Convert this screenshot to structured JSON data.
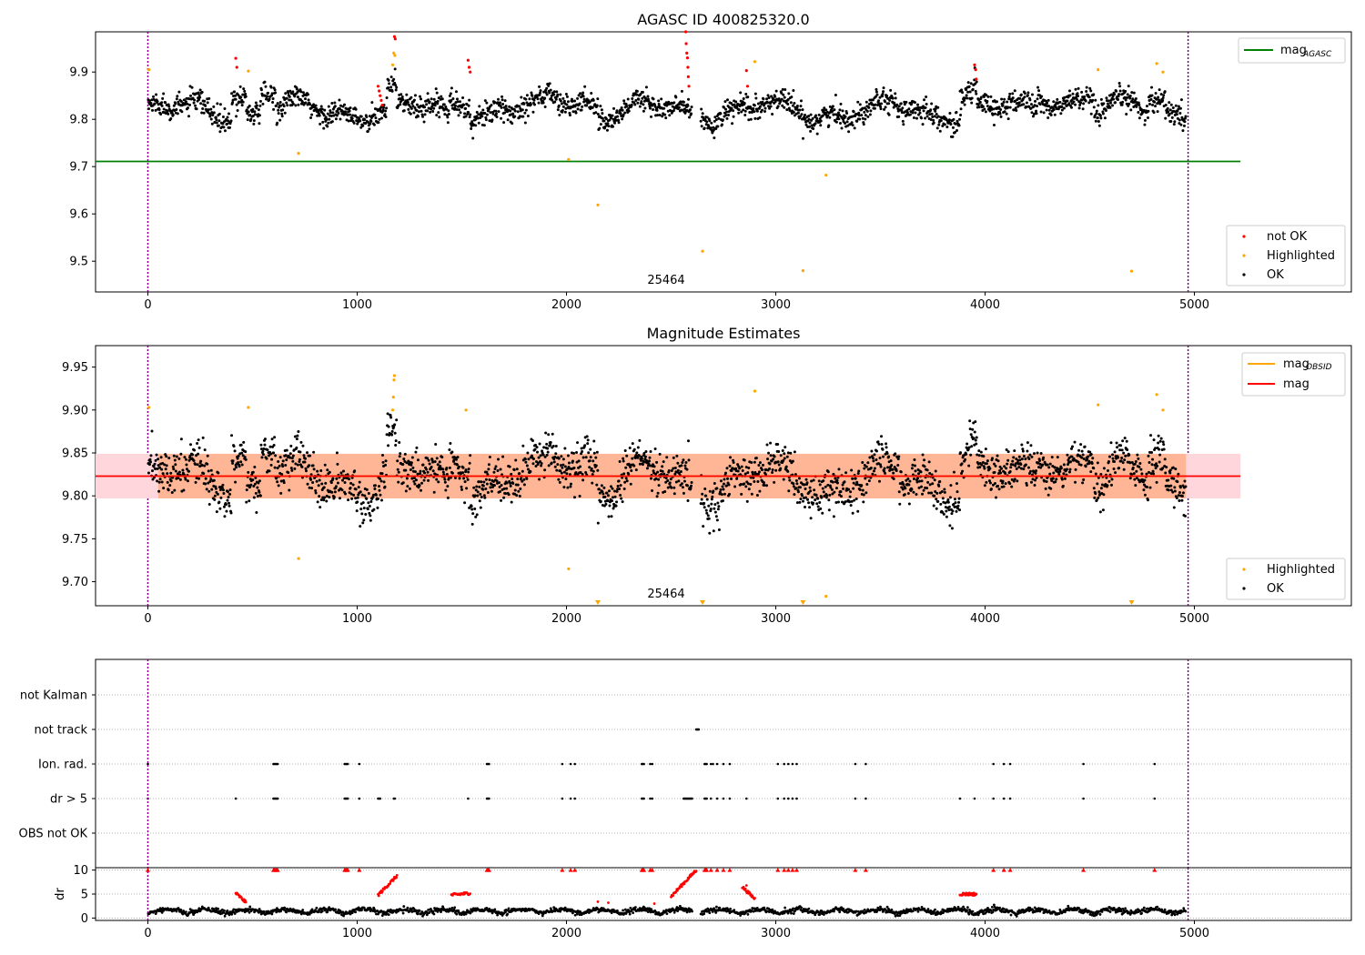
{
  "colors": {
    "ok": "#000000",
    "not_ok": "#ff0000",
    "highlighted": "#ffa500",
    "agasc_line": "#008000",
    "obsid_line": "#ffa500",
    "mag_line": "#ff0000",
    "band_fill": "#ffb08a",
    "band_fill_ends": "#ffd6dc",
    "vline": "#800080",
    "grid": "#b0b0b0"
  },
  "chart_data": [
    {
      "type": "scatter",
      "title": "AGASC ID 400825320.0",
      "xlim": [
        -250,
        5750
      ],
      "ylim": [
        9.435,
        9.985
      ],
      "xticks": [
        0,
        1000,
        2000,
        3000,
        4000,
        5000
      ],
      "xtick_labels": [
        "0",
        "1000",
        "2000",
        "3000",
        "4000",
        "5000"
      ],
      "yticks": [
        9.5,
        9.6,
        9.7,
        9.8,
        9.9
      ],
      "ytick_labels": [
        "9.5",
        "9.6",
        "9.7",
        "9.8",
        "9.9"
      ],
      "obsid_label": "25464",
      "obsid_label_x": 2490,
      "obs_start": 0,
      "obs_end": 4970,
      "mag_agasc": 9.711,
      "mag_agasc_xrange": [
        -250,
        5220
      ],
      "legend_lines": [
        {
          "label": "mag",
          "sub": "AGASC"
        }
      ],
      "legend_points": [
        "not OK",
        "Highlighted",
        "OK"
      ],
      "highlighted": [
        [
          5,
          9.905
        ],
        [
          480,
          9.902
        ],
        [
          720,
          9.728
        ],
        [
          2010,
          9.715
        ],
        [
          2150,
          9.619
        ],
        [
          2650,
          9.521
        ],
        [
          2900,
          9.922
        ],
        [
          3130,
          9.48
        ],
        [
          3240,
          9.682
        ],
        [
          4540,
          9.905
        ],
        [
          4700,
          9.479
        ],
        [
          4820,
          9.918
        ],
        [
          1170,
          9.915
        ],
        [
          1175,
          9.94
        ],
        [
          1180,
          9.935
        ],
        [
          4850,
          9.9
        ]
      ],
      "not_ok": [
        [
          420,
          9.929
        ],
        [
          425,
          9.91
        ],
        [
          1100,
          9.87
        ],
        [
          1105,
          9.86
        ],
        [
          1110,
          9.85
        ],
        [
          1115,
          9.84
        ],
        [
          1120,
          9.83
        ],
        [
          1178,
          9.975
        ],
        [
          1182,
          9.97
        ],
        [
          1530,
          9.925
        ],
        [
          1535,
          9.91
        ],
        [
          1540,
          9.9
        ],
        [
          2570,
          9.985
        ],
        [
          2572,
          9.96
        ],
        [
          2575,
          9.94
        ],
        [
          2578,
          9.93
        ],
        [
          2580,
          9.91
        ],
        [
          2582,
          9.89
        ],
        [
          2585,
          9.87
        ],
        [
          2860,
          9.903
        ],
        [
          2865,
          9.87
        ],
        [
          3950,
          9.915
        ],
        [
          3955,
          9.905
        ],
        [
          3958,
          9.885
        ]
      ]
    },
    {
      "type": "scatter",
      "title": "Magnitude Estimates",
      "xlim": [
        -250,
        5750
      ],
      "ylim": [
        9.672,
        9.975
      ],
      "xticks": [
        0,
        1000,
        2000,
        3000,
        4000,
        5000
      ],
      "xtick_labels": [
        "0",
        "1000",
        "2000",
        "3000",
        "4000",
        "5000"
      ],
      "yticks": [
        9.7,
        9.75,
        9.8,
        9.85,
        9.9,
        9.95
      ],
      "ytick_labels": [
        "9.70",
        "9.75",
        "9.80",
        "9.85",
        "9.90",
        "9.95"
      ],
      "obsid_label": "25464",
      "obsid_label_x": 2490,
      "obs_start": 0,
      "obs_end": 4970,
      "mag": 9.823,
      "mag_band": [
        9.797,
        9.849
      ],
      "mag_xrange": [
        -250,
        5220
      ],
      "obsid_xrange": [
        50,
        4960
      ],
      "legend_lines": [
        {
          "label": "mag",
          "sub": "OBSID"
        },
        {
          "label": "mag",
          "sub": ""
        }
      ],
      "legend_points": [
        "Highlighted",
        "OK"
      ],
      "highlighted": [
        [
          5,
          9.903
        ],
        [
          480,
          9.903
        ],
        [
          720,
          9.727
        ],
        [
          1170,
          9.9
        ],
        [
          1173,
          9.915
        ],
        [
          1176,
          9.935
        ],
        [
          1178,
          9.94
        ],
        [
          1520,
          9.9
        ],
        [
          2010,
          9.715
        ],
        [
          2900,
          9.922
        ],
        [
          3240,
          9.683
        ],
        [
          4540,
          9.906
        ],
        [
          4820,
          9.918
        ],
        [
          4850,
          9.9
        ]
      ],
      "below_range_x": [
        2150,
        2650,
        3130,
        4700
      ]
    },
    {
      "type": "scatter",
      "title": "",
      "xlim": [
        -250,
        5750
      ],
      "categories": [
        "not Kalman",
        "not track",
        "Ion. rad.",
        "dr > 5",
        "OBS not OK"
      ],
      "obs_start": 0,
      "obs_end": 4970,
      "flags": {
        "not track": [
          2620,
          2625,
          2628,
          2632
        ],
        "Ion. rad.": [
          0,
          600,
          605,
          610,
          615,
          620,
          940,
          945,
          950,
          955,
          1010,
          1620,
          1625,
          1630,
          1980,
          2020,
          2040,
          2360,
          2365,
          2370,
          2400,
          2410,
          2660,
          2665,
          2670,
          2690,
          2700,
          2720,
          2750,
          2780,
          3010,
          3040,
          3060,
          3080,
          3100,
          3380,
          3430,
          4040,
          4090,
          4120,
          4470,
          4810
        ],
        "dr > 5": [
          0,
          420,
          600,
          605,
          610,
          615,
          620,
          940,
          945,
          950,
          955,
          1010,
          1100,
          1105,
          1110,
          1175,
          1180,
          1530,
          1620,
          1625,
          1630,
          1980,
          2020,
          2040,
          2360,
          2365,
          2370,
          2400,
          2410,
          2560,
          2565,
          2570,
          2575,
          2580,
          2585,
          2590,
          2595,
          2600,
          2660,
          2665,
          2670,
          2690,
          2720,
          2750,
          2780,
          2860,
          3010,
          3040,
          3060,
          3080,
          3100,
          3380,
          3430,
          3880,
          3950,
          4040,
          4090,
          4120,
          4470,
          4810
        ]
      }
    },
    {
      "type": "scatter",
      "title": "",
      "xlim": [
        -250,
        5750
      ],
      "ylim": [
        -0.5,
        10.5
      ],
      "xticks": [
        0,
        1000,
        2000,
        3000,
        4000,
        5000
      ],
      "xtick_labels": [
        "0",
        "1000",
        "2000",
        "3000",
        "4000",
        "5000"
      ],
      "yticks": [
        0,
        5,
        10
      ],
      "ytick_labels": [
        "0",
        "5",
        "10"
      ],
      "ylabel": "dr",
      "obs_start": 0,
      "obs_end": 4970,
      "clipped_x": [
        0,
        600,
        605,
        610,
        615,
        620,
        940,
        945,
        950,
        955,
        1010,
        1620,
        1625,
        1630,
        1980,
        2020,
        2040,
        2360,
        2365,
        2370,
        2400,
        2410,
        2660,
        2665,
        2670,
        2690,
        2720,
        2750,
        2780,
        3010,
        3040,
        3060,
        3080,
        3100,
        3380,
        3430,
        4040,
        4090,
        4120,
        4470,
        4810
      ],
      "red_segments": [
        [
          420,
          470,
          5.2,
          3.2
        ],
        [
          1100,
          1190,
          4.8,
          8.8
        ],
        [
          1450,
          1540,
          4.8,
          5.2
        ],
        [
          2500,
          2620,
          4.5,
          10
        ],
        [
          2840,
          2900,
          6.5,
          4.0
        ],
        [
          3880,
          3960,
          5.0,
          5.0
        ]
      ],
      "extra_red": [
        [
          2150,
          3.4
        ],
        [
          2200,
          3.2
        ],
        [
          2420,
          3.0
        ],
        [
          2860,
          6.8
        ]
      ]
    }
  ]
}
